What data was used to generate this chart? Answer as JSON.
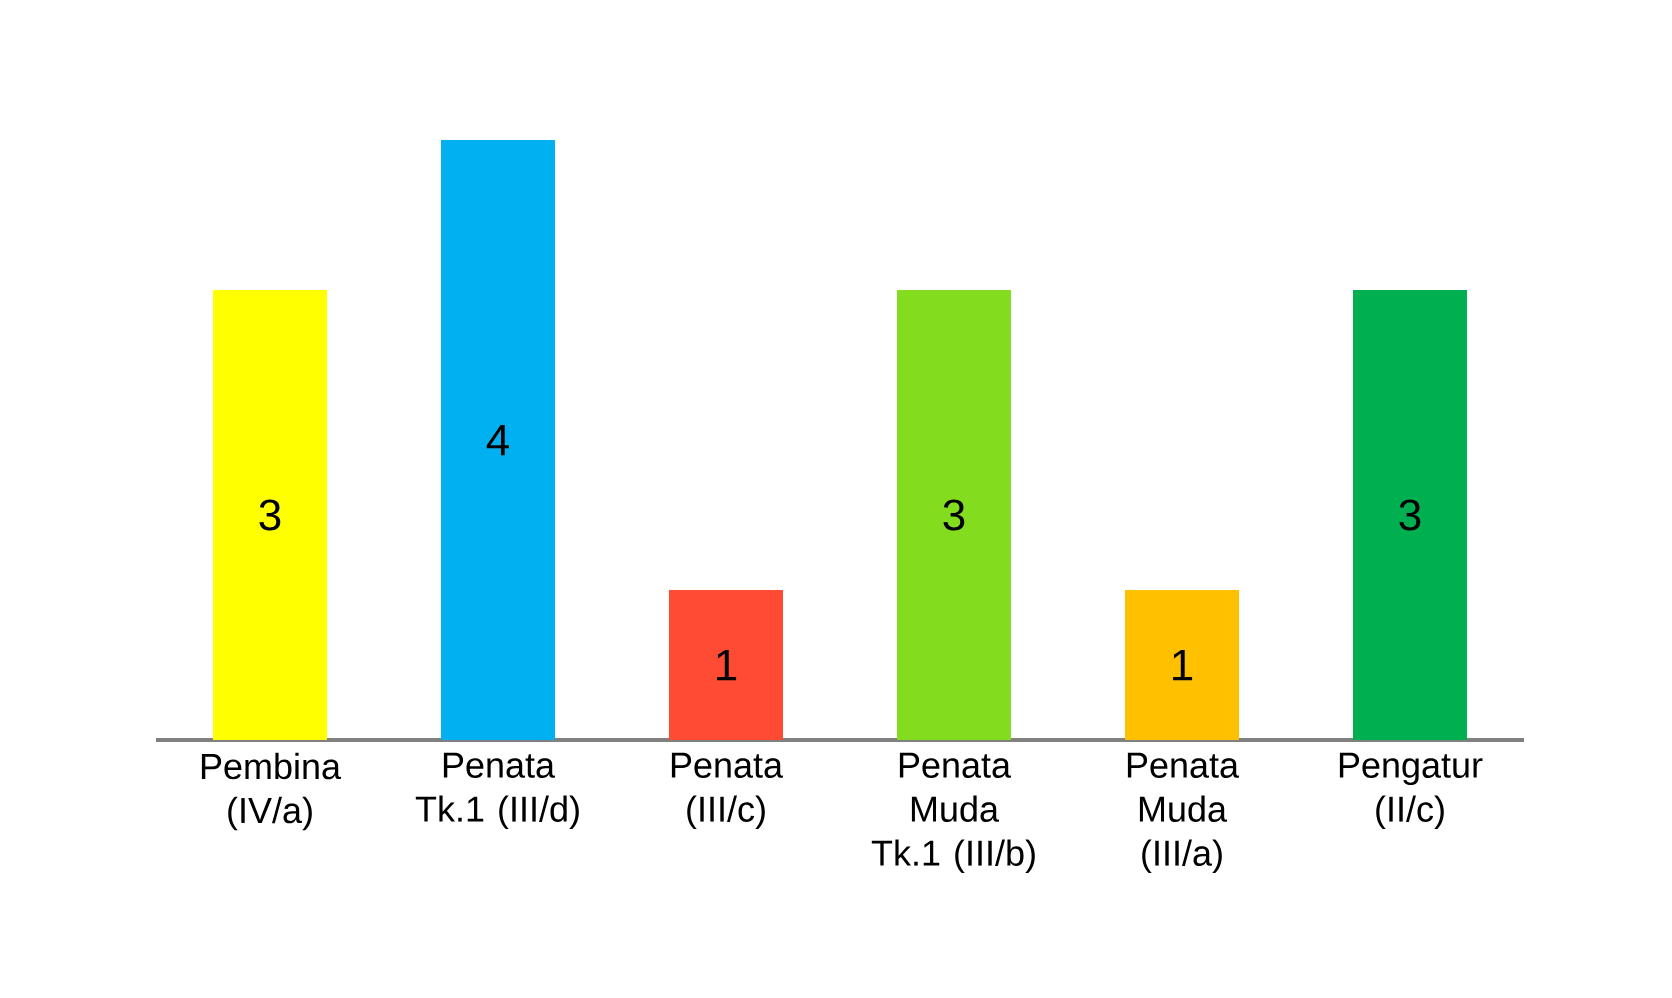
{
  "chart_data": {
    "type": "bar",
    "categories": [
      "Pembina (IV/a)",
      "Penata Tk.1 (III/d)",
      "Penata (III/c)",
      "Penata Muda Tk.1 (III/b)",
      "Penata Muda (III/a)",
      "Pengatur (II/c)"
    ],
    "values": [
      3,
      4,
      1,
      3,
      1,
      3
    ],
    "colors": [
      "#ffff00",
      "#00b0f0",
      "#ff4b33",
      "#84dc1e",
      "#ffc000",
      "#00b050"
    ],
    "data_labels": true
  }
}
